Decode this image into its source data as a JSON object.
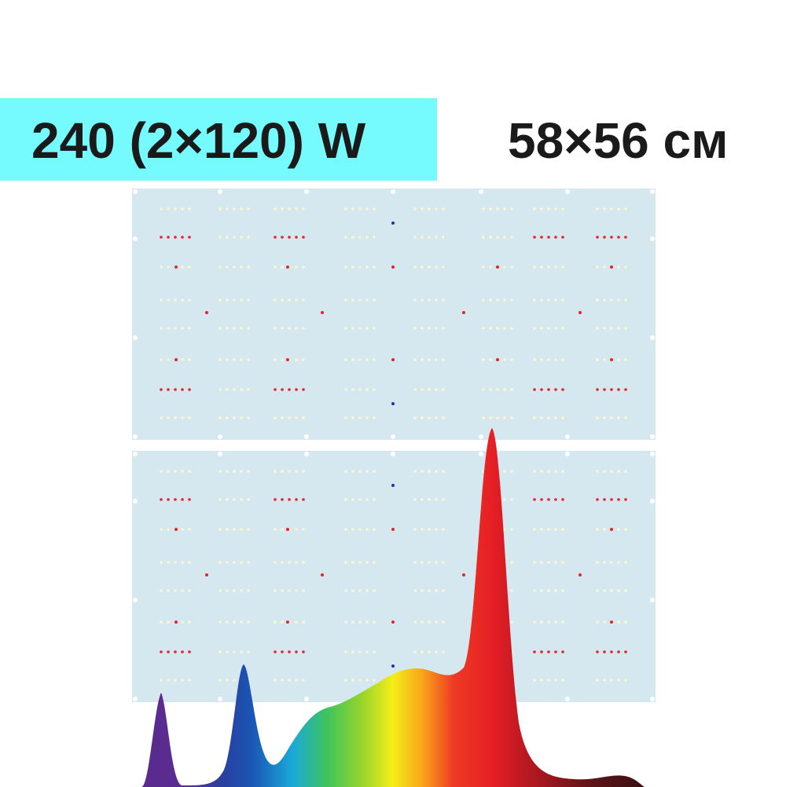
{
  "labels": {
    "power": "240 (2×120) W",
    "size": "58×56 см"
  },
  "colors": {
    "banner": "#75fbfd",
    "board": "#d6e8ef",
    "led_white": "#fbf7d2",
    "led_red": "#e5232b",
    "led_blue": "#2a2ab8"
  },
  "boards": [
    {
      "name": "led-board-top"
    },
    {
      "name": "led-board-bottom"
    }
  ],
  "spectrum": {
    "peaks": [
      "violet",
      "blue",
      "red"
    ]
  }
}
